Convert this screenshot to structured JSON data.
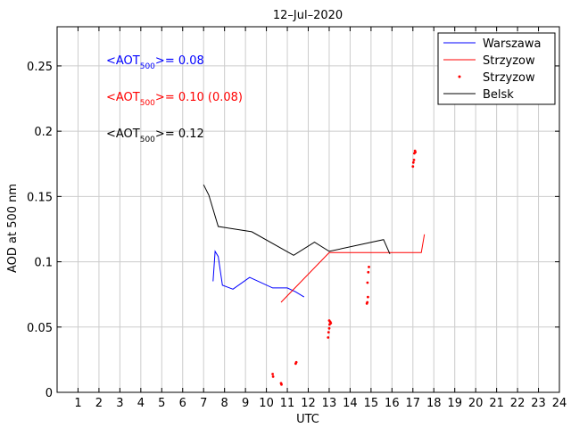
{
  "chart_data": {
    "type": "line",
    "title": "12–Jul–2020",
    "xlabel": "UTC",
    "ylabel": "AOD at 500 nm",
    "xlim": [
      0,
      24
    ],
    "ylim": [
      0,
      0.28
    ],
    "xticks": [
      1,
      2,
      3,
      4,
      5,
      6,
      7,
      8,
      9,
      10,
      11,
      12,
      13,
      14,
      15,
      16,
      17,
      18,
      19,
      20,
      21,
      22,
      23,
      24
    ],
    "yticks": [
      0,
      0.05,
      0.1,
      0.15,
      0.2,
      0.25
    ],
    "ytick_labels": [
      "0",
      "0.05",
      "0.1",
      "0.15",
      "0.2",
      "0.25"
    ],
    "grid": true,
    "legend_position": "top-right",
    "series": [
      {
        "name": "Warszawa",
        "style": "line",
        "color": "#0000ff",
        "x": [
          7.45,
          7.55,
          7.7,
          7.9,
          8.4,
          9.2,
          10.3,
          11.0,
          11.4,
          11.8
        ],
        "y": [
          0.085,
          0.108,
          0.104,
          0.082,
          0.079,
          0.088,
          0.08,
          0.08,
          0.077,
          0.073
        ]
      },
      {
        "name": "Strzyzow",
        "style": "line",
        "color": "#ff0000",
        "x": [
          10.7,
          13.0,
          17.4,
          17.55
        ],
        "y": [
          0.069,
          0.107,
          0.107,
          0.121
        ]
      },
      {
        "name": "Strzyzow",
        "style": "points",
        "color": "#ff0000",
        "x": [
          10.3,
          10.32,
          10.7,
          10.72,
          11.4,
          11.43,
          12.95,
          12.97,
          13.0,
          13.02,
          13.05,
          13.0,
          13.08,
          14.8,
          14.82,
          14.85,
          14.83,
          14.87,
          14.9,
          17.0,
          17.02,
          17.05,
          17.07,
          17.1,
          17.12
        ],
        "y": [
          0.014,
          0.012,
          0.007,
          0.006,
          0.022,
          0.023,
          0.042,
          0.046,
          0.049,
          0.052,
          0.054,
          0.055,
          0.053,
          0.068,
          0.069,
          0.073,
          0.084,
          0.092,
          0.096,
          0.173,
          0.176,
          0.178,
          0.183,
          0.185,
          0.184
        ]
      },
      {
        "name": "Belsk",
        "style": "line",
        "color": "#000000",
        "x": [
          7.0,
          7.25,
          7.7,
          9.3,
          11.3,
          12.3,
          13.0,
          15.6,
          15.9
        ],
        "y": [
          0.159,
          0.151,
          0.127,
          0.123,
          0.105,
          0.115,
          0.108,
          0.117,
          0.106
        ]
      }
    ],
    "annotations": [
      {
        "pre": "<AOT",
        "sub": "500",
        "post": ">= 0.08",
        "color": "#0000ff"
      },
      {
        "pre": "<AOT",
        "sub": "500",
        "post": ">= 0.10 (0.08)",
        "color": "#ff0000"
      },
      {
        "pre": "<AOT",
        "sub": "500",
        "post": ">= 0.12",
        "color": "#000000"
      }
    ]
  }
}
